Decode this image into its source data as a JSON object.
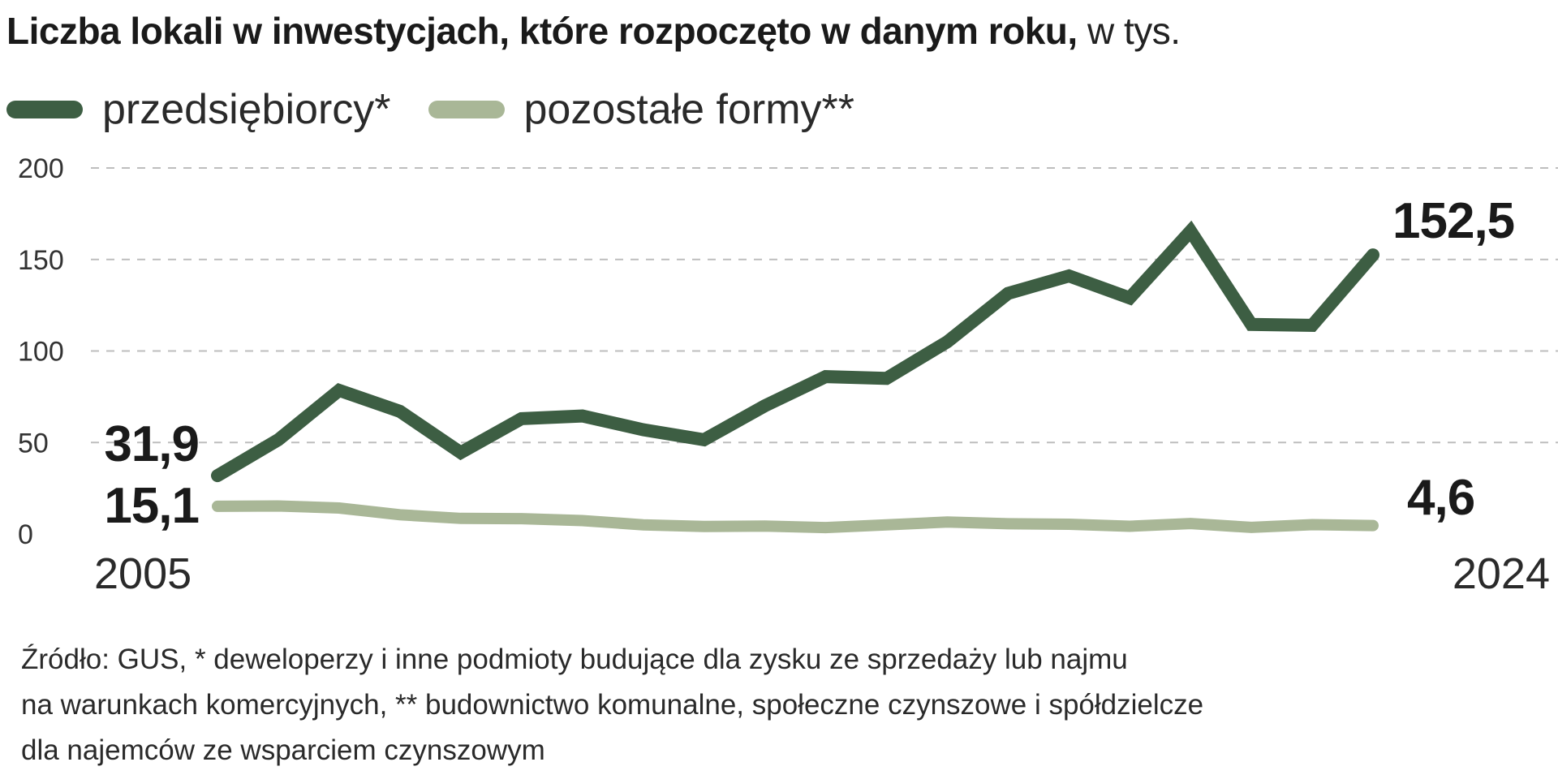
{
  "chart_data": {
    "type": "line",
    "title": "Liczba lokali w inwestycjach, które rozpoczęto w danym roku,",
    "unit": "w tys.",
    "x": [
      2005,
      2006,
      2007,
      2008,
      2009,
      2010,
      2011,
      2012,
      2013,
      2014,
      2015,
      2016,
      2017,
      2018,
      2019,
      2020,
      2021,
      2022,
      2023,
      2024
    ],
    "x_tick_labels": [
      "2005",
      "2024"
    ],
    "ylim": [
      0,
      200
    ],
    "y_ticks": [
      0,
      50,
      100,
      150,
      200
    ],
    "y_tick_labels": [
      "0",
      "50",
      "100",
      "150",
      "200"
    ],
    "grid": true,
    "grid_style": "dashed horizontal",
    "legend_placement": "top-left",
    "series": [
      {
        "name": "przedsiębiorcy*",
        "color": "#3d5e43",
        "values": [
          31.9,
          51.5,
          78.5,
          67.0,
          44.5,
          63.0,
          64.5,
          57.0,
          51.5,
          70.0,
          86.0,
          85.0,
          105.0,
          131.5,
          141.0,
          129.0,
          165.5,
          114.5,
          114.0,
          152.5
        ],
        "labels": {
          "first": "31,9",
          "last": "152,5"
        }
      },
      {
        "name": "pozostałe formy**",
        "color": "#a9b797",
        "values": [
          15.1,
          15.3,
          14.2,
          10.5,
          8.5,
          8.4,
          7.3,
          5.0,
          4.1,
          4.3,
          3.5,
          5.0,
          6.5,
          5.6,
          5.3,
          4.2,
          5.7,
          3.6,
          5.1,
          4.6
        ],
        "labels": {
          "first": "15,1",
          "last": "4,6"
        }
      }
    ]
  },
  "source_lines": [
    "Źródło: GUS, * deweloperzy i inne podmioty budujące dla zysku ze sprzedaży lub najmu",
    "na warunkach komercyjnych, ** budownictwo komunalne, społeczne czynszowe i spółdzielcze",
    "dla najemców ze wsparciem czynszowym"
  ]
}
